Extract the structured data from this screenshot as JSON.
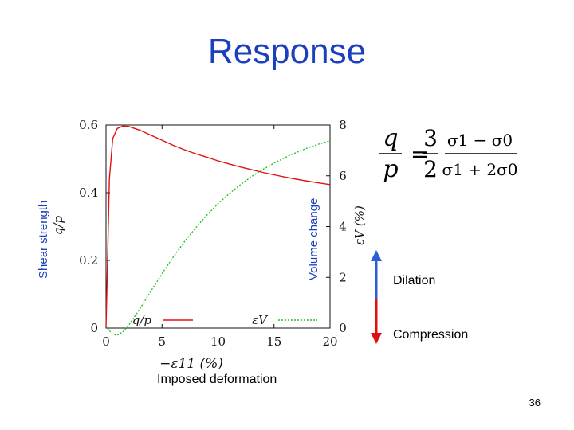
{
  "slide": {
    "title": "Response",
    "left_axis_caption": "Shear strength",
    "right_axis_caption": "Volume change",
    "bottom_caption": "Imposed deformation",
    "dilation_label": "Dilation",
    "compression_label": "Compression",
    "page_number": "36"
  },
  "formula": {
    "lhs_num": "q",
    "lhs_den": "p",
    "equals": "=",
    "coef_num": "3",
    "coef_den": "2",
    "frac_num": "σ1 − σ0",
    "frac_den": "σ1 + 2σ0"
  },
  "colors": {
    "title": "#1a3fbf",
    "qp_series": "#e01010",
    "ev_series": "#22c422",
    "dilation_arrow": "#2a5fd6",
    "compression_arrow": "#e01010"
  },
  "chart_data": {
    "type": "line",
    "xlabel": "−ε11 (%)",
    "ylabel_left": "q/p",
    "ylabel_right": "εV (%)",
    "xlim": [
      0,
      20
    ],
    "ylim_left": [
      0,
      0.6
    ],
    "ylim_right": [
      0,
      8
    ],
    "x_ticks": [
      0,
      5,
      10,
      15,
      20
    ],
    "y_ticks_left": [
      0,
      0.2,
      0.4,
      0.6
    ],
    "y_ticks_right": [
      0,
      2,
      4,
      6,
      8
    ],
    "x_tick_labels": [
      "0",
      "5",
      "10",
      "15",
      "20"
    ],
    "y_tick_labels_left": [
      "0",
      "0.2",
      "0.4",
      "0.6"
    ],
    "y_tick_labels_right": [
      "0",
      "2",
      "4",
      "6",
      "8"
    ],
    "series": [
      {
        "name": "q/p",
        "axis": "left",
        "color": "#e01010",
        "style": "solid",
        "x": [
          0,
          0.3,
          0.6,
          1,
          1.5,
          2,
          3,
          4,
          5,
          6,
          7,
          8,
          9,
          10,
          11,
          12,
          13,
          14,
          15,
          16,
          17,
          18,
          19,
          20
        ],
        "y": [
          0.0,
          0.44,
          0.56,
          0.59,
          0.597,
          0.596,
          0.585,
          0.57,
          0.555,
          0.54,
          0.527,
          0.515,
          0.505,
          0.494,
          0.485,
          0.476,
          0.468,
          0.46,
          0.453,
          0.446,
          0.44,
          0.434,
          0.429,
          0.424
        ]
      },
      {
        "name": "εV",
        "axis": "right",
        "color": "#22c422",
        "style": "dashed",
        "x": [
          0,
          0.3,
          0.6,
          1,
          1.5,
          2,
          3,
          4,
          5,
          6,
          7,
          8,
          9,
          10,
          11,
          12,
          13,
          14,
          15,
          16,
          17,
          18,
          19,
          20
        ],
        "y": [
          0.1,
          -0.1,
          -0.25,
          -0.28,
          -0.15,
          0.1,
          0.75,
          1.45,
          2.15,
          2.8,
          3.4,
          3.95,
          4.45,
          4.9,
          5.3,
          5.65,
          5.97,
          6.25,
          6.5,
          6.72,
          6.92,
          7.1,
          7.25,
          7.38
        ]
      }
    ],
    "legend_position": "bottom"
  }
}
